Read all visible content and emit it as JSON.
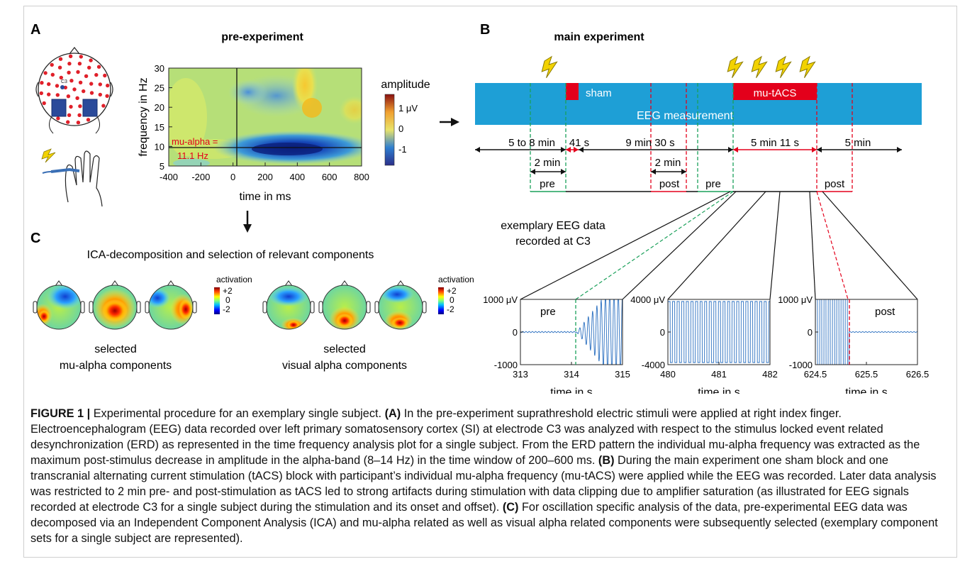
{
  "panels": {
    "A": {
      "letter": "A",
      "title": "pre-experiment",
      "ylabel": "frequency in Hz",
      "xlabel": "time in ms",
      "yticks": [
        "30",
        "25",
        "20",
        "15",
        "10",
        "5"
      ],
      "xticks": [
        "-400",
        "-200",
        "0",
        "200",
        "400",
        "600",
        "800"
      ],
      "mu_alpha_label_1": "mu-alpha =",
      "mu_alpha_label_2": "11.1 Hz",
      "electrode_label": "C3",
      "colorbar": {
        "title": "amplitude",
        "ticks": [
          "1 μV",
          "0",
          "-1"
        ]
      }
    },
    "B": {
      "letter": "B",
      "title": "main experiment",
      "bar_top": "EEG measurement",
      "sham_label": "sham",
      "tacs_label": "mu-tACS",
      "durations": [
        "5 to 8 min",
        "41 s",
        "9 min 30 s",
        "5 min 11 s",
        "5 min"
      ],
      "two_min_1": "2 min",
      "two_min_2": "2 min",
      "pre_1": "pre",
      "post_1": "post",
      "pre_2": "pre",
      "post_2": "post",
      "eeg_title_1": "exemplary EEG data",
      "eeg_title_2": "recorded at C3",
      "eeg1": {
        "yticks": [
          "1000 μV",
          "0",
          "-1000"
        ],
        "xticks": [
          "313",
          "314",
          "315"
        ],
        "xlabel": "time in s",
        "tag": "pre"
      },
      "eeg2": {
        "yticks": [
          "4000 μV",
          "0",
          "-4000"
        ],
        "xticks": [
          "480",
          "481",
          "482"
        ],
        "xlabel": "time in s"
      },
      "eeg3": {
        "yticks": [
          "1000 μV",
          "0",
          "-1000"
        ],
        "xticks": [
          "624.5",
          "625.5",
          "626.5"
        ],
        "xlabel": "time in s",
        "tag": "post"
      }
    },
    "C": {
      "letter": "C",
      "title": "ICA-decomposition and selection of relevant components",
      "colorbar_title": "activation",
      "colorbar_ticks": [
        "+2",
        "0",
        "-2"
      ],
      "group1_line1": "selected",
      "group1_line2": "mu-alpha components",
      "group2_line1": "selected",
      "group2_line2": "visual alpha components"
    }
  },
  "caption": {
    "fig_label": "FIGURE 1 |",
    "text1": " Experimental procedure for an exemplary single subject. ",
    "A_label": "(A)",
    "text2": " In the pre-experiment suprathreshold electric stimuli were applied at right index finger. Electroencephalogram (EEG) data recorded over left primary somatosensory cortex (SI) at electrode C3 was analyzed with respect to the stimulus locked event related desynchronization (ERD) as represented in the time frequency analysis plot for a single subject. From the ERD pattern the individual mu-alpha frequency was extracted as the maximum post-stimulus decrease in amplitude in the alpha-band (8–14 Hz) in the time window of 200–600 ms. ",
    "B_label": "(B)",
    "text3": " During the main experiment one sham block and one transcranial alternating current stimulation (tACS) block with participant’s individual mu-alpha frequency (mu-tACS) were applied while the EEG was recorded. Later data analysis was restricted to 2 min pre- and post-stimulation as tACS led to strong artifacts during stimulation with data clipping due to amplifier saturation (as illustrated for EEG signals recorded at electrode C3 for a single subject during the stimulation and its onset and offset). ",
    "C_label": "(C)",
    "text4": " For oscillation specific analysis of the data, pre-experimental EEG data was decomposed via an Independent Component Analysis (ICA) and mu-alpha related as well as visual alpha related components were subsequently selected (exemplary component sets for a single subject are represented)."
  },
  "colors": {
    "tacs_red": "#e3001b",
    "bar_blue": "#1e9fd6",
    "green_dash": "#1aa05a",
    "red_dash": "#e3001b"
  },
  "icons": [
    "lightning-bolt-icon",
    "hand-stimulation-icon",
    "down-arrow-icon",
    "right-arrow-icon"
  ]
}
